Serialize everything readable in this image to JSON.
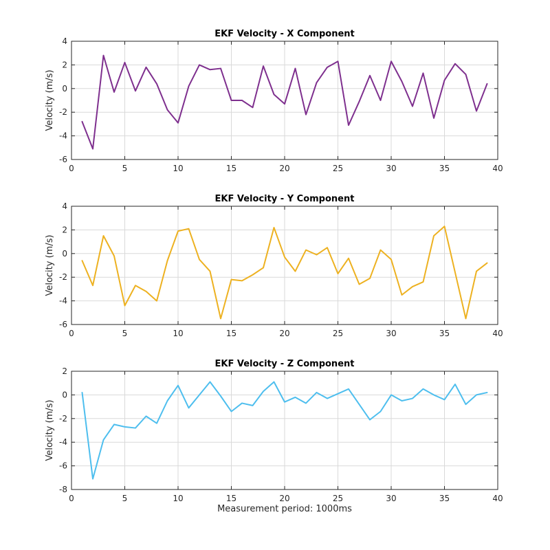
{
  "figure": {
    "background": "#ffffff",
    "axis_color": "#262626",
    "grid_color": "#d9d9d9"
  },
  "chart_data": [
    {
      "type": "line",
      "title": "EKF Velocity - X Component",
      "xlabel": "",
      "ylabel": "Velocity (m/s)",
      "xlim": [
        0,
        40
      ],
      "ylim": [
        -6,
        4
      ],
      "xticks": [
        0,
        5,
        10,
        15,
        20,
        25,
        30,
        35,
        40
      ],
      "yticks": [
        -6,
        -4,
        -2,
        0,
        2,
        4
      ],
      "grid": true,
      "color": "#7e2f8e",
      "x": [
        1,
        2,
        3,
        4,
        5,
        6,
        7,
        8,
        9,
        10,
        11,
        12,
        13,
        14,
        15,
        16,
        17,
        18,
        19,
        20,
        21,
        22,
        23,
        24,
        25,
        26,
        27,
        28,
        29,
        30,
        31,
        32,
        33,
        34,
        35,
        36,
        37,
        38,
        39
      ],
      "values": [
        -2.8,
        -5.1,
        2.8,
        -0.3,
        2.2,
        -0.2,
        1.8,
        0.4,
        -1.8,
        -2.9,
        0.2,
        2.0,
        1.6,
        1.7,
        -1.0,
        -1.0,
        -1.6,
        1.9,
        -0.5,
        -1.3,
        1.7,
        -2.2,
        0.5,
        1.8,
        2.3,
        -3.1,
        -1.1,
        1.1,
        -1.0,
        2.3,
        0.6,
        -1.5,
        1.3,
        -2.5,
        0.7,
        2.1,
        1.2,
        -1.9,
        0.4
      ]
    },
    {
      "type": "line",
      "title": "EKF Velocity - Y Component",
      "xlabel": "",
      "ylabel": "Velocity (m/s)",
      "xlim": [
        0,
        40
      ],
      "ylim": [
        -6,
        4
      ],
      "xticks": [
        0,
        5,
        10,
        15,
        20,
        25,
        30,
        35,
        40
      ],
      "yticks": [
        -6,
        -4,
        -2,
        0,
        2,
        4
      ],
      "grid": true,
      "color": "#edb120",
      "x": [
        1,
        2,
        3,
        4,
        5,
        6,
        7,
        8,
        9,
        10,
        11,
        12,
        13,
        14,
        15,
        16,
        17,
        18,
        19,
        20,
        21,
        22,
        23,
        24,
        25,
        26,
        27,
        28,
        29,
        30,
        31,
        32,
        33,
        34,
        35,
        36,
        37,
        38,
        39
      ],
      "values": [
        -0.6,
        -2.7,
        1.5,
        -0.2,
        -4.4,
        -2.7,
        -3.2,
        -4.0,
        -0.6,
        1.9,
        2.1,
        -0.5,
        -1.5,
        -5.5,
        -2.2,
        -2.3,
        -1.8,
        -1.2,
        2.2,
        -0.3,
        -1.5,
        0.3,
        -0.1,
        0.5,
        -1.7,
        -0.4,
        -2.6,
        -2.1,
        0.3,
        -0.5,
        -3.5,
        -2.8,
        -2.4,
        1.5,
        2.3,
        -1.6,
        -5.5,
        -1.5,
        -0.8
      ]
    },
    {
      "type": "line",
      "title": "EKF Velocity - Z Component",
      "xlabel": "Measurement period: 1000ms",
      "ylabel": "Velocity (m/s)",
      "xlim": [
        0,
        40
      ],
      "ylim": [
        -8,
        2
      ],
      "xticks": [
        0,
        5,
        10,
        15,
        20,
        25,
        30,
        35,
        40
      ],
      "yticks": [
        -8,
        -6,
        -4,
        -2,
        0,
        2
      ],
      "grid": true,
      "color": "#4dbeee",
      "x": [
        1,
        2,
        3,
        4,
        5,
        6,
        7,
        8,
        9,
        10,
        11,
        12,
        13,
        14,
        15,
        16,
        17,
        18,
        19,
        20,
        21,
        22,
        23,
        24,
        25,
        26,
        27,
        28,
        29,
        30,
        31,
        32,
        33,
        34,
        35,
        36,
        37,
        38,
        39
      ],
      "values": [
        0.2,
        -7.1,
        -3.8,
        -2.5,
        -2.7,
        -2.8,
        -1.8,
        -2.4,
        -0.5,
        0.8,
        -1.1,
        0.0,
        1.1,
        -0.1,
        -1.4,
        -0.7,
        -0.9,
        0.3,
        1.1,
        -0.6,
        -0.2,
        -0.7,
        0.2,
        -0.3,
        0.1,
        0.5,
        -0.8,
        -2.1,
        -1.4,
        0.0,
        -0.5,
        -0.3,
        0.5,
        0.0,
        -0.4,
        0.9,
        -0.8,
        0.0,
        0.2
      ]
    }
  ]
}
